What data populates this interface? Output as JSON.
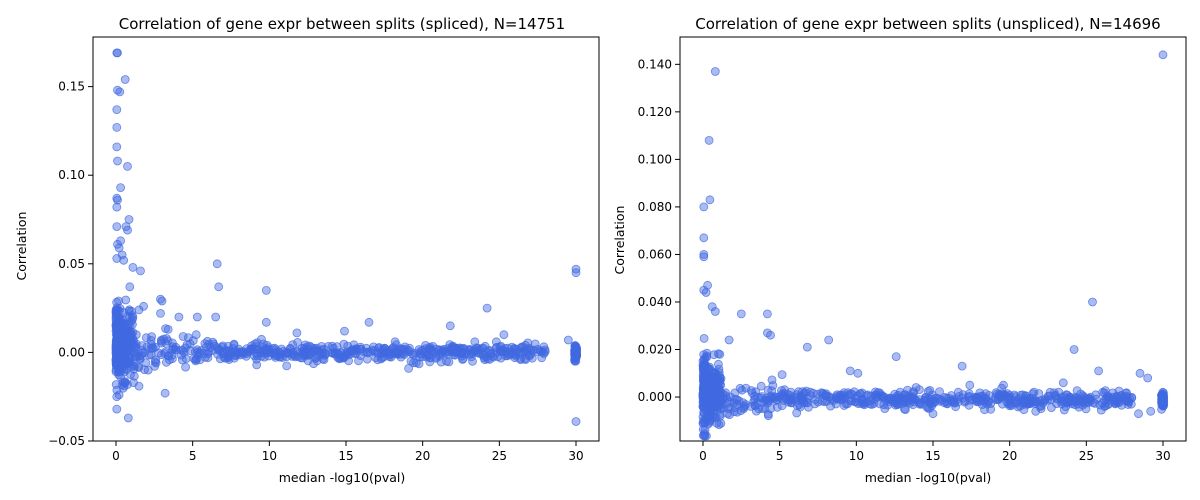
{
  "chart_data": [
    {
      "type": "scatter",
      "title": "Correlation of gene expr between splits (spliced), N=14751",
      "xlabel": "median -log10(pval)",
      "ylabel": "Correlation",
      "xlim": [
        -1.5,
        31.5
      ],
      "ylim": [
        -0.05,
        0.178
      ],
      "xticks": [
        0,
        5,
        10,
        15,
        20,
        25,
        30
      ],
      "yticks": [
        -0.05,
        0.0,
        0.05,
        0.1,
        0.15
      ],
      "ytick_labels": [
        "−0.05",
        "0.00",
        "0.05",
        "0.10",
        "0.15"
      ],
      "color": "#4169e1",
      "points": [
        [
          0.05,
          0.169
        ],
        [
          0.1,
          0.169
        ],
        [
          0.6,
          0.154
        ],
        [
          0.1,
          0.148
        ],
        [
          0.25,
          0.147
        ],
        [
          0.05,
          0.137
        ],
        [
          0.05,
          0.127
        ],
        [
          0.05,
          0.116
        ],
        [
          0.1,
          0.108
        ],
        [
          0.75,
          0.105
        ],
        [
          0.3,
          0.093
        ],
        [
          0.05,
          0.087
        ],
        [
          0.1,
          0.086
        ],
        [
          0.05,
          0.082
        ],
        [
          0.85,
          0.075
        ],
        [
          0.65,
          0.071
        ],
        [
          0.75,
          0.069
        ],
        [
          0.05,
          0.071
        ],
        [
          0.3,
          0.063
        ],
        [
          0.1,
          0.061
        ],
        [
          0.2,
          0.059
        ],
        [
          0.4,
          0.055
        ],
        [
          0.05,
          0.053
        ],
        [
          0.5,
          0.052
        ],
        [
          6.6,
          0.05
        ],
        [
          1.1,
          0.048
        ],
        [
          1.6,
          0.046
        ],
        [
          30.0,
          0.047
        ],
        [
          30.0,
          0.045
        ],
        [
          6.7,
          0.037
        ],
        [
          0.9,
          0.037
        ],
        [
          9.8,
          0.035
        ],
        [
          2.9,
          0.03
        ],
        [
          3.0,
          0.029
        ],
        [
          24.2,
          0.025
        ],
        [
          1.5,
          0.024
        ],
        [
          1.8,
          0.026
        ],
        [
          2.9,
          0.022
        ],
        [
          4.1,
          0.02
        ],
        [
          5.3,
          0.02
        ],
        [
          6.5,
          0.02
        ],
        [
          9.8,
          0.017
        ],
        [
          16.5,
          0.017
        ],
        [
          21.8,
          0.015
        ],
        [
          14.9,
          0.012
        ],
        [
          11.8,
          0.011
        ],
        [
          25.3,
          0.01
        ],
        [
          29.5,
          0.007
        ],
        [
          24.8,
          0.006
        ],
        [
          26.7,
          0.004
        ],
        [
          18.2,
          0.006
        ],
        [
          3.2,
          -0.023
        ],
        [
          1.5,
          -0.019
        ],
        [
          0.6,
          -0.017
        ],
        [
          0.8,
          -0.037
        ],
        [
          0.05,
          -0.032
        ],
        [
          30.0,
          -0.039
        ],
        [
          0.05,
          -0.025
        ],
        [
          0.2,
          -0.024
        ],
        [
          20.5,
          -0.003
        ],
        [
          22.6,
          -0.004
        ],
        [
          23.4,
          0.006
        ]
      ],
      "dense_band": {
        "x_range": [
          0,
          30
        ],
        "y_center": 0.0,
        "spread_low_x": 0.018,
        "spread_high_x": 0.005,
        "approx_count": 900
      }
    },
    {
      "type": "scatter",
      "title": "Correlation of gene expr between splits (unspliced), N=14696",
      "xlabel": "median -log10(pval)",
      "ylabel": "Correlation",
      "xlim": [
        -1.5,
        31.5
      ],
      "ylim": [
        -0.0185,
        0.1515
      ],
      "xticks": [
        0,
        5,
        10,
        15,
        20,
        25,
        30
      ],
      "yticks": [
        0.0,
        0.02,
        0.04,
        0.06,
        0.08,
        0.1,
        0.12,
        0.14
      ],
      "ytick_labels": [
        "0.000",
        "0.020",
        "0.040",
        "0.060",
        "0.080",
        "0.100",
        "0.120",
        "0.140"
      ],
      "color": "#4169e1",
      "points": [
        [
          30.0,
          0.144
        ],
        [
          0.8,
          0.137
        ],
        [
          0.4,
          0.108
        ],
        [
          0.45,
          0.083
        ],
        [
          0.05,
          0.08
        ],
        [
          0.05,
          0.067
        ],
        [
          0.05,
          0.06
        ],
        [
          0.05,
          0.059
        ],
        [
          0.3,
          0.047
        ],
        [
          0.05,
          0.045
        ],
        [
          0.2,
          0.044
        ],
        [
          25.4,
          0.04
        ],
        [
          0.6,
          0.038
        ],
        [
          0.8,
          0.036
        ],
        [
          2.5,
          0.035
        ],
        [
          4.2,
          0.035
        ],
        [
          4.2,
          0.027
        ],
        [
          4.4,
          0.026
        ],
        [
          8.2,
          0.024
        ],
        [
          24.2,
          0.02
        ],
        [
          12.6,
          0.017
        ],
        [
          16.9,
          0.013
        ],
        [
          25.8,
          0.011
        ],
        [
          6.8,
          0.021
        ],
        [
          1.7,
          0.024
        ],
        [
          28.5,
          0.01
        ],
        [
          29.0,
          0.008
        ],
        [
          23.5,
          0.006
        ],
        [
          17.4,
          0.005
        ],
        [
          19.6,
          0.005
        ],
        [
          21.7,
          -0.006
        ],
        [
          15.0,
          -0.007
        ],
        [
          28.4,
          -0.007
        ],
        [
          29.2,
          -0.006
        ],
        [
          9.6,
          0.011
        ],
        [
          10.1,
          0.01
        ],
        [
          13.9,
          0.004
        ],
        [
          26.2,
          -0.004
        ],
        [
          0.9,
          -0.011
        ]
      ],
      "dense_band": {
        "x_range": [
          0,
          30
        ],
        "y_center": -0.001,
        "spread_low_x": 0.011,
        "spread_high_x": 0.004,
        "approx_count": 900
      }
    }
  ]
}
